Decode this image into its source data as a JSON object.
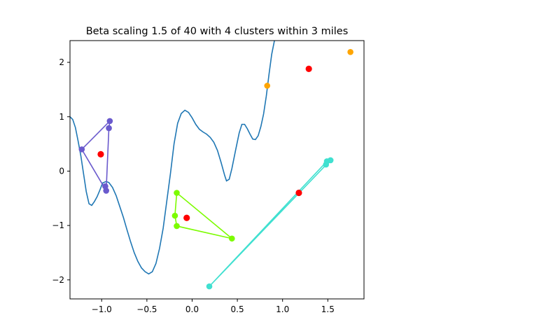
{
  "chart_data": {
    "type": "scatter",
    "title": "Beta scaling 1.5 of 40 with 4 clusters within 3 miles",
    "xlabel": "",
    "ylabel": "",
    "xlim": [
      -1.35,
      1.9
    ],
    "ylim": [
      -2.35,
      2.4
    ],
    "xticks": [
      -1.0,
      -0.5,
      0.0,
      0.5,
      1.0,
      1.5
    ],
    "xtick_labels": [
      "−1.0",
      "−0.5",
      "0.0",
      "0.5",
      "1.0",
      "1.5"
    ],
    "yticks": [
      -2,
      -1,
      0,
      1,
      2
    ],
    "ytick_labels": [
      "−2",
      "−1",
      "0",
      "1",
      "2"
    ],
    "grid": false,
    "curve": {
      "color": "#1f77b4",
      "points": [
        [
          -1.35,
          1.0
        ],
        [
          -1.32,
          0.95
        ],
        [
          -1.29,
          0.8
        ],
        [
          -1.26,
          0.55
        ],
        [
          -1.23,
          0.28
        ],
        [
          -1.2,
          -0.05
        ],
        [
          -1.17,
          -0.38
        ],
        [
          -1.14,
          -0.6
        ],
        [
          -1.11,
          -0.63
        ],
        [
          -1.08,
          -0.56
        ],
        [
          -1.05,
          -0.47
        ],
        [
          -1.02,
          -0.35
        ],
        [
          -0.99,
          -0.22
        ],
        [
          -0.95,
          -0.19
        ],
        [
          -0.92,
          -0.21
        ],
        [
          -0.88,
          -0.3
        ],
        [
          -0.84,
          -0.45
        ],
        [
          -0.8,
          -0.65
        ],
        [
          -0.76,
          -0.85
        ],
        [
          -0.72,
          -1.08
        ],
        [
          -0.68,
          -1.3
        ],
        [
          -0.64,
          -1.5
        ],
        [
          -0.6,
          -1.66
        ],
        [
          -0.56,
          -1.78
        ],
        [
          -0.52,
          -1.85
        ],
        [
          -0.48,
          -1.89
        ],
        [
          -0.44,
          -1.85
        ],
        [
          -0.4,
          -1.7
        ],
        [
          -0.36,
          -1.42
        ],
        [
          -0.32,
          -1.05
        ],
        [
          -0.28,
          -0.55
        ],
        [
          -0.24,
          -0.05
        ],
        [
          -0.2,
          0.5
        ],
        [
          -0.16,
          0.88
        ],
        [
          -0.12,
          1.06
        ],
        [
          -0.08,
          1.12
        ],
        [
          -0.04,
          1.08
        ],
        [
          0.0,
          0.98
        ],
        [
          0.04,
          0.86
        ],
        [
          0.08,
          0.77
        ],
        [
          0.12,
          0.72
        ],
        [
          0.16,
          0.68
        ],
        [
          0.2,
          0.62
        ],
        [
          0.24,
          0.53
        ],
        [
          0.28,
          0.38
        ],
        [
          0.32,
          0.16
        ],
        [
          0.36,
          -0.08
        ],
        [
          0.38,
          -0.18
        ],
        [
          0.41,
          -0.15
        ],
        [
          0.44,
          0.05
        ],
        [
          0.48,
          0.38
        ],
        [
          0.52,
          0.7
        ],
        [
          0.55,
          0.86
        ],
        [
          0.58,
          0.86
        ],
        [
          0.61,
          0.78
        ],
        [
          0.64,
          0.68
        ],
        [
          0.67,
          0.59
        ],
        [
          0.7,
          0.58
        ],
        [
          0.73,
          0.65
        ],
        [
          0.76,
          0.82
        ],
        [
          0.79,
          1.05
        ],
        [
          0.82,
          1.38
        ],
        [
          0.85,
          1.78
        ],
        [
          0.88,
          2.15
        ],
        [
          0.91,
          2.4
        ]
      ]
    },
    "clusters": [
      {
        "color": "#6a5acd",
        "centroid": [
          -1.01,
          0.31
        ],
        "points": [
          [
            -1.22,
            0.4
          ],
          [
            -0.91,
            0.92
          ],
          [
            -0.92,
            0.79
          ],
          [
            -0.96,
            -0.28
          ],
          [
            -0.95,
            -0.36
          ]
        ],
        "hull": [
          [
            -1.22,
            0.4
          ],
          [
            -0.91,
            0.92
          ],
          [
            -0.92,
            0.79
          ],
          [
            -0.95,
            -0.36
          ],
          [
            -1.22,
            0.4
          ]
        ]
      },
      {
        "color": "#7cfc00",
        "centroid": [
          -0.06,
          -0.86
        ],
        "points": [
          [
            -0.17,
            -0.4
          ],
          [
            -0.19,
            -0.82
          ],
          [
            -0.17,
            -1.01
          ],
          [
            0.44,
            -1.24
          ]
        ],
        "hull": [
          [
            -0.17,
            -0.4
          ],
          [
            -0.19,
            -0.82
          ],
          [
            -0.17,
            -1.01
          ],
          [
            0.44,
            -1.24
          ],
          [
            -0.17,
            -0.4
          ]
        ]
      },
      {
        "color": "#40e0d0",
        "centroid": [
          1.18,
          -0.4
        ],
        "points": [
          [
            0.19,
            -2.12
          ],
          [
            1.48,
            0.12
          ],
          [
            1.49,
            0.18
          ],
          [
            1.53,
            0.2
          ]
        ],
        "hull": [
          [
            0.19,
            -2.12
          ],
          [
            1.53,
            0.2
          ],
          [
            1.49,
            0.18
          ],
          [
            0.19,
            -2.12
          ]
        ]
      },
      {
        "color": "#ffa500",
        "centroid": [
          1.29,
          1.88
        ],
        "points": [
          [
            0.83,
            1.57
          ],
          [
            1.75,
            2.19
          ]
        ],
        "hull": []
      }
    ],
    "centroid_color": "#ff0000"
  }
}
